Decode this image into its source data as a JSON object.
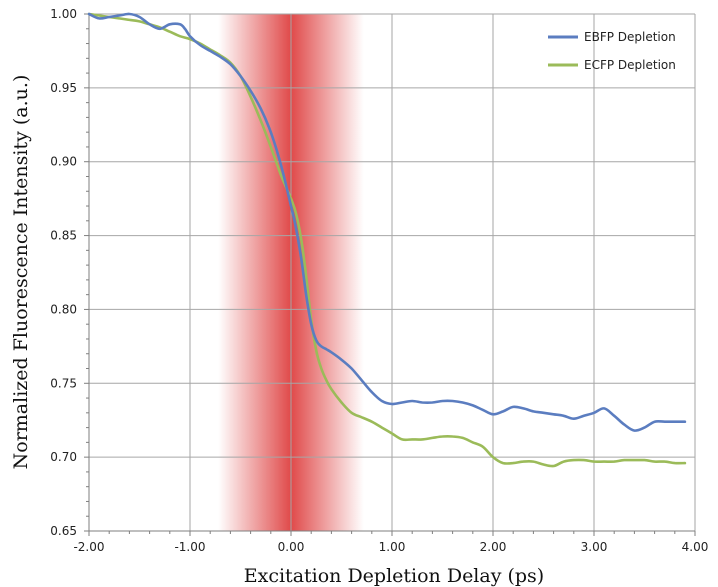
{
  "chart_data": {
    "type": "line",
    "title": "",
    "xlabel": "Excitation Depletion Delay (ps)",
    "ylabel": "Normalized Fluorescence Intensity (a.u.)",
    "xlim": [
      -2.0,
      4.0
    ],
    "ylim": [
      0.65,
      1.0
    ],
    "x_ticks": [
      -2.0,
      -1.0,
      0.0,
      1.0,
      2.0,
      3.0,
      4.0
    ],
    "x_tick_labels": [
      "-2.00",
      "-1.00",
      "0.00",
      "1.00",
      "2.00",
      "3.00",
      "4.00"
    ],
    "y_ticks": [
      0.65,
      0.7,
      0.75,
      0.8,
      0.85,
      0.9,
      0.95,
      1.0
    ],
    "y_tick_labels": [
      "0.65",
      "0.70",
      "0.75",
      "0.80",
      "0.85",
      "0.90",
      "0.95",
      "1.00"
    ],
    "grid": true,
    "legend_position": "top-right",
    "highlight_band": {
      "center": 0.0,
      "color": "#dd3a3a"
    },
    "series": [
      {
        "name": "EBFP Depletion",
        "color": "#5b7dc0",
        "x": [
          -2.0,
          -1.9,
          -1.8,
          -1.7,
          -1.6,
          -1.5,
          -1.4,
          -1.3,
          -1.2,
          -1.1,
          -1.05,
          -1.0,
          -0.9,
          -0.8,
          -0.7,
          -0.6,
          -0.5,
          -0.4,
          -0.3,
          -0.2,
          -0.1,
          0.0,
          0.05,
          0.1,
          0.15,
          0.2,
          0.25,
          0.3,
          0.35,
          0.4,
          0.5,
          0.6,
          0.7,
          0.8,
          0.9,
          1.0,
          1.1,
          1.2,
          1.3,
          1.4,
          1.5,
          1.6,
          1.7,
          1.8,
          1.9,
          2.0,
          2.1,
          2.2,
          2.3,
          2.4,
          2.5,
          2.6,
          2.7,
          2.8,
          2.9,
          3.0,
          3.1,
          3.2,
          3.3,
          3.4,
          3.5,
          3.6,
          3.7,
          3.8,
          3.9
        ],
        "values": [
          1.0,
          0.997,
          0.998,
          0.999,
          1.0,
          0.998,
          0.993,
          0.99,
          0.993,
          0.993,
          0.99,
          0.985,
          0.979,
          0.975,
          0.971,
          0.966,
          0.958,
          0.948,
          0.936,
          0.92,
          0.898,
          0.87,
          0.855,
          0.835,
          0.81,
          0.79,
          0.779,
          0.775,
          0.773,
          0.771,
          0.766,
          0.76,
          0.752,
          0.744,
          0.738,
          0.736,
          0.737,
          0.738,
          0.737,
          0.737,
          0.738,
          0.738,
          0.737,
          0.735,
          0.732,
          0.729,
          0.731,
          0.734,
          0.733,
          0.731,
          0.73,
          0.729,
          0.728,
          0.726,
          0.728,
          0.73,
          0.733,
          0.728,
          0.722,
          0.718,
          0.72,
          0.724,
          0.724,
          0.724,
          0.724
        ]
      },
      {
        "name": "ECFP Depletion",
        "color": "#9bbb59",
        "x": [
          -2.0,
          -1.9,
          -1.8,
          -1.7,
          -1.6,
          -1.5,
          -1.4,
          -1.3,
          -1.2,
          -1.1,
          -1.0,
          -0.9,
          -0.8,
          -0.7,
          -0.6,
          -0.5,
          -0.4,
          -0.3,
          -0.2,
          -0.1,
          0.0,
          0.05,
          0.1,
          0.15,
          0.2,
          0.25,
          0.3,
          0.35,
          0.4,
          0.5,
          0.6,
          0.7,
          0.8,
          0.9,
          1.0,
          1.1,
          1.2,
          1.3,
          1.4,
          1.5,
          1.6,
          1.7,
          1.8,
          1.9,
          2.0,
          2.1,
          2.2,
          2.3,
          2.4,
          2.5,
          2.6,
          2.7,
          2.8,
          2.9,
          3.0,
          3.1,
          3.2,
          3.3,
          3.4,
          3.5,
          3.6,
          3.7,
          3.8,
          3.9
        ],
        "values": [
          1.0,
          0.999,
          0.998,
          0.997,
          0.996,
          0.995,
          0.993,
          0.991,
          0.988,
          0.985,
          0.983,
          0.98,
          0.976,
          0.972,
          0.967,
          0.958,
          0.944,
          0.928,
          0.91,
          0.891,
          0.875,
          0.865,
          0.848,
          0.823,
          0.793,
          0.772,
          0.76,
          0.752,
          0.746,
          0.737,
          0.73,
          0.727,
          0.724,
          0.72,
          0.716,
          0.712,
          0.712,
          0.712,
          0.713,
          0.714,
          0.714,
          0.713,
          0.71,
          0.707,
          0.7,
          0.696,
          0.696,
          0.697,
          0.697,
          0.695,
          0.694,
          0.697,
          0.698,
          0.698,
          0.697,
          0.697,
          0.697,
          0.698,
          0.698,
          0.698,
          0.697,
          0.697,
          0.696,
          0.696
        ]
      }
    ]
  }
}
